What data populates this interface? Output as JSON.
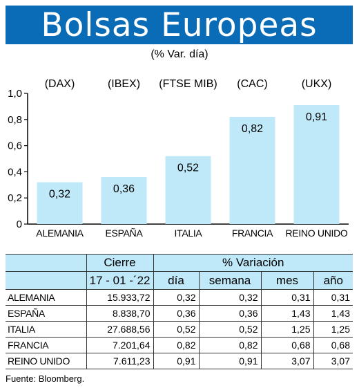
{
  "title": "Bolsas Europeas",
  "subtitle": "(% Var. día)",
  "chart_data": {
    "type": "bar",
    "index_labels": [
      "(DAX)",
      "(IBEX)",
      "(FTSE MIB)",
      "(CAC)",
      "(UKX)"
    ],
    "categories": [
      "ALEMANIA",
      "ESPAÑA",
      "ITALIA",
      "FRANCIA",
      "REINO UNIDO"
    ],
    "values": [
      0.32,
      0.36,
      0.52,
      0.82,
      0.91
    ],
    "value_labels": [
      "0,32",
      "0,36",
      "0,52",
      "0,82",
      "0,91"
    ],
    "yticks": [
      "0",
      "0,2",
      "0,4",
      "0,6",
      "0,8",
      "1,0"
    ],
    "ylim": [
      0,
      1.0
    ],
    "colors": {
      "bar": "#bfe8f8",
      "banner": "#0a6cb6"
    }
  },
  "table": {
    "header_cierre": "Cierre",
    "header_variacion": "% Variación",
    "date": "17 - 01 -´22",
    "col_dia": "día",
    "col_semana": "semana",
    "col_mes": "mes",
    "col_anio": "año",
    "rows": [
      {
        "name": "ALEMANIA",
        "cierre": "15.933,72",
        "dia": "0,32",
        "semana": "0,32",
        "mes": "0,31",
        "anio": "0,31"
      },
      {
        "name": "ESPAÑA",
        "cierre": "8.838,70",
        "dia": "0,36",
        "semana": "0,36",
        "mes": "1,43",
        "anio": "1,43"
      },
      {
        "name": "ITALIA",
        "cierre": "27.688,56",
        "dia": "0,52",
        "semana": "0,52",
        "mes": "1,25",
        "anio": "1,25"
      },
      {
        "name": "FRANCIA",
        "cierre": "7.201,64",
        "dia": "0,82",
        "semana": "0,82",
        "mes": "0,68",
        "anio": "0,68"
      },
      {
        "name": "REINO UNIDO",
        "cierre": "7.611,23",
        "dia": "0,91",
        "semana": "0,91",
        "mes": "3,07",
        "anio": "3,07"
      }
    ]
  },
  "source": "Fuente: Bloomberg."
}
